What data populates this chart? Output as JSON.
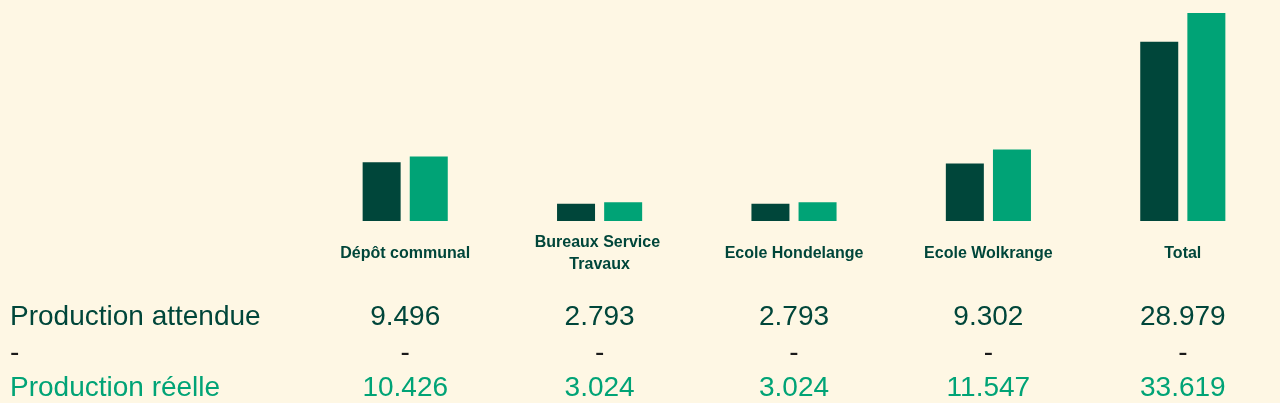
{
  "chart_data": {
    "type": "bar",
    "categories": [
      "Dépôt communal",
      "Bureaux Service Travaux",
      "Ecole Hondelange",
      "Ecole Wolkrange",
      "Total"
    ],
    "series": [
      {
        "name": "Production attendue",
        "color": "#00463a",
        "values": [
          9496,
          2793,
          2793,
          9302,
          28979
        ],
        "value_labels": [
          "9.496",
          "2.793",
          "2.793",
          "9.302",
          "28.979"
        ]
      },
      {
        "name": "-",
        "color": "#1a1a1a",
        "values": [
          null,
          null,
          null,
          null,
          null
        ],
        "value_labels": [
          "-",
          "-",
          "-",
          "-",
          "-"
        ]
      },
      {
        "name": "Production réelle",
        "color": "#00a376",
        "values": [
          10426,
          3024,
          3024,
          11547,
          33619
        ],
        "value_labels": [
          "10.426",
          "3.024",
          "3.024",
          "11.547",
          "33.619"
        ]
      }
    ]
  }
}
